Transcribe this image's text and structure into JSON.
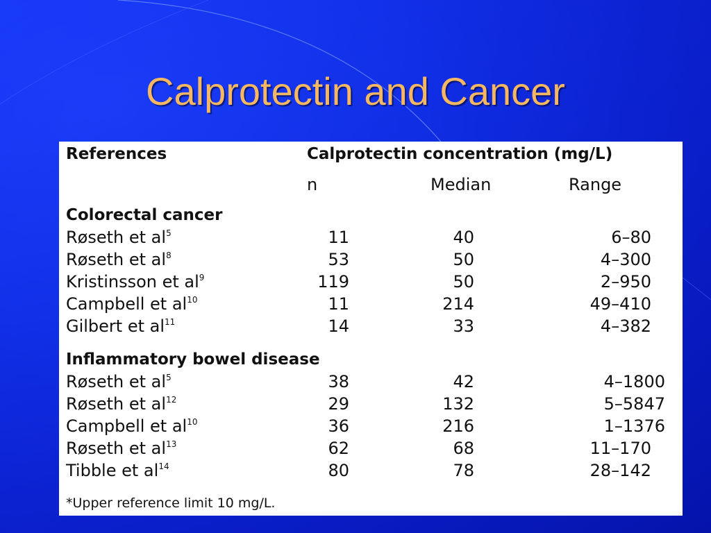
{
  "slide": {
    "title": "Calprotectin and Cancer",
    "colors": {
      "background": "#0f2ff0",
      "title": "#f5b763",
      "table_background": "#ffffff",
      "table_text": "#111111"
    }
  },
  "table": {
    "header_references": "References",
    "header_concentration": "Calprotectin concentration (mg/L)",
    "col_n": "n",
    "col_median": "Median",
    "col_range": "Range",
    "sections": [
      {
        "title": "Colorectal cancer",
        "rows": [
          {
            "ref": "Røseth et al",
            "sup": "5",
            "n": "11",
            "median": "40",
            "range": "6–80"
          },
          {
            "ref": "Røseth et al",
            "sup": "8",
            "n": "53",
            "median": "50",
            "range": "4–300"
          },
          {
            "ref": "Kristinsson et al",
            "sup": "9",
            "n": "119",
            "median": "50",
            "range": "2–950"
          },
          {
            "ref": "Campbell et al",
            "sup": "10",
            "n": "11",
            "median": "214",
            "range": "49–410"
          },
          {
            "ref": "Gilbert et al",
            "sup": "11",
            "n": "14",
            "median": "33",
            "range": "4–382"
          }
        ]
      },
      {
        "title": "Inflammatory bowel disease",
        "rows": [
          {
            "ref": "Røseth et al",
            "sup": "5",
            "n": "38",
            "median": "42",
            "range": "4–1800"
          },
          {
            "ref": "Røseth et al",
            "sup": "12",
            "n": "29",
            "median": "132",
            "range": "5–5847"
          },
          {
            "ref": "Campbell et al",
            "sup": "10",
            "n": "36",
            "median": "216",
            "range": "1–1376"
          },
          {
            "ref": "Røseth et al",
            "sup": "13",
            "n": "62",
            "median": "68",
            "range": "11–170"
          },
          {
            "ref": "Tibble et al",
            "sup": "14",
            "n": "80",
            "median": "78",
            "range": "28–142"
          }
        ]
      }
    ],
    "footnote": "*Upper reference limit 10 mg/L."
  }
}
